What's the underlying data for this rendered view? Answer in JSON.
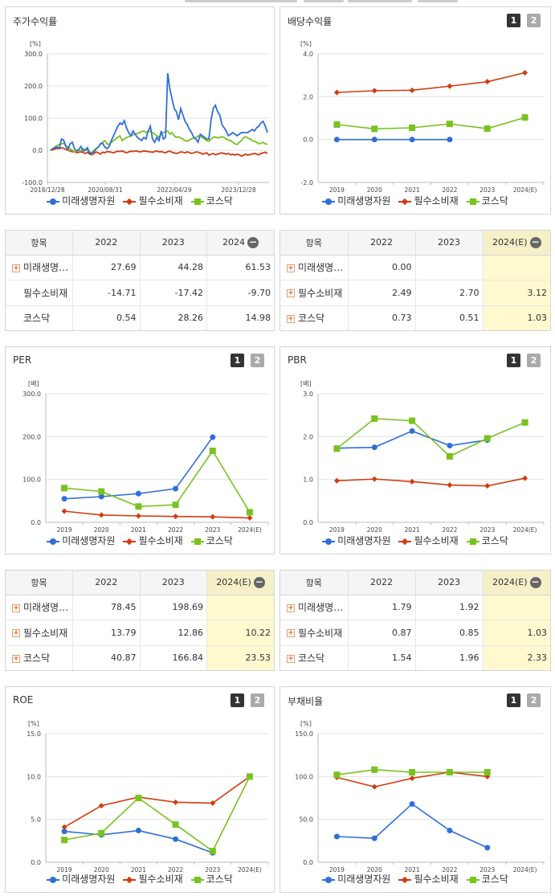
{
  "buttons": {
    "one": "1",
    "two": "2"
  },
  "colors": {
    "mirae": "#2f6fd6",
    "pilsu": "#d13c0f",
    "kosdaq": "#79c21f"
  },
  "panels": {
    "stock": {
      "title": "주가수익률",
      "unit": "[%]"
    },
    "dividend": {
      "title": "배당수익률",
      "unit": "[%]"
    },
    "per": {
      "title": "PER",
      "unit": "[배]"
    },
    "pbr": {
      "title": "PBR",
      "unit": "[배]"
    },
    "roe": {
      "title": "ROE",
      "unit": "[%]"
    },
    "debt": {
      "title": "부채비율",
      "unit": "[%]"
    }
  },
  "legend": [
    "미래생명자원",
    "필수소비재",
    "코스닥"
  ],
  "tables": {
    "stock": {
      "headers": [
        "항목",
        "2022",
        "2023",
        "2024"
      ],
      "rows": [
        {
          "name": "미래생명…",
          "plus": true,
          "values": [
            "27.69",
            "44.28",
            "61.53"
          ]
        },
        {
          "name": "필수소비재",
          "plus": false,
          "values": [
            "-14.71",
            "-17.42",
            "-9.70"
          ]
        },
        {
          "name": "코스닥",
          "plus": false,
          "values": [
            "0.54",
            "28.26",
            "14.98"
          ]
        }
      ]
    },
    "dividend": {
      "headers": [
        "항목",
        "2022",
        "2023",
        "2024(E)"
      ],
      "rows": [
        {
          "name": "미래생명…",
          "plus": true,
          "values": [
            "0.00",
            "",
            ""
          ]
        },
        {
          "name": "필수소비재",
          "plus": true,
          "values": [
            "2.49",
            "2.70",
            "3.12"
          ]
        },
        {
          "name": "코스닥",
          "plus": true,
          "values": [
            "0.73",
            "0.51",
            "1.03"
          ]
        }
      ]
    },
    "per": {
      "headers": [
        "항목",
        "2022",
        "2023",
        "2024(E)"
      ],
      "rows": [
        {
          "name": "미래생명…",
          "plus": true,
          "values": [
            "78.45",
            "198.69",
            ""
          ]
        },
        {
          "name": "필수소비재",
          "plus": true,
          "values": [
            "13.79",
            "12.86",
            "10.22"
          ]
        },
        {
          "name": "코스닥",
          "plus": true,
          "values": [
            "40.87",
            "166.84",
            "23.53"
          ]
        }
      ]
    },
    "pbr": {
      "headers": [
        "항목",
        "2022",
        "2023",
        "2024(E)"
      ],
      "rows": [
        {
          "name": "미래생명…",
          "plus": true,
          "values": [
            "1.79",
            "1.92",
            ""
          ]
        },
        {
          "name": "필수소비재",
          "plus": true,
          "values": [
            "0.87",
            "0.85",
            "1.03"
          ]
        },
        {
          "name": "코스닥",
          "plus": true,
          "values": [
            "1.54",
            "1.96",
            "2.33"
          ]
        }
      ]
    }
  },
  "chart_data": [
    {
      "id": "stock",
      "type": "line",
      "title": "주가수익률",
      "ylabel": "[%]",
      "ylim": [
        -100,
        300
      ],
      "yticks": [
        "300.0",
        "200.0",
        "100.0",
        "0.0",
        "-100.0"
      ],
      "xticks": [
        "2018/12/28",
        "2020/08/31",
        "2022/04/29",
        "2023/12/28"
      ],
      "series": [
        {
          "name": "미래생명자원",
          "values": [
            0,
            5,
            8,
            10,
            6,
            35,
            32,
            12,
            3,
            20,
            25,
            5,
            -2,
            3,
            12,
            -3,
            0,
            8,
            -10,
            -8,
            -5,
            5,
            10,
            20,
            22,
            10,
            5,
            12,
            30,
            45,
            60,
            75,
            85,
            80,
            92,
            70,
            55,
            45,
            60,
            50,
            40,
            35,
            30,
            40,
            35,
            60,
            75,
            35,
            25,
            40,
            30,
            60,
            35,
            40,
            240,
            190,
            160,
            130,
            120,
            95,
            130,
            110,
            90,
            80,
            65,
            55,
            40,
            35,
            25,
            50,
            45,
            40,
            35,
            35,
            95,
            130,
            140,
            120,
            110,
            80,
            70,
            60,
            45,
            50,
            55,
            50,
            45,
            50,
            55,
            55,
            55,
            55,
            60,
            65,
            60,
            70,
            75,
            85,
            90,
            75,
            55
          ]
        },
        {
          "name": "필수소비재",
          "values": [
            0,
            2,
            4,
            6,
            5,
            8,
            6,
            3,
            0,
            -2,
            -5,
            -4,
            -8,
            -6,
            -5,
            -7,
            -10,
            -6,
            -12,
            -14,
            -10,
            -5,
            -8,
            -12,
            -6,
            -8,
            -4,
            -5,
            -6,
            -8,
            -5,
            -3,
            -4,
            -2,
            -5,
            -8,
            -5,
            -3,
            -4,
            -2,
            -3,
            -5,
            -4,
            -2,
            -3,
            -4,
            -5,
            -6,
            -4,
            -2,
            -5,
            -4,
            -6,
            -8,
            -4,
            -3,
            -6,
            -8,
            -10,
            -8,
            -5,
            -6,
            -8,
            -5,
            -7,
            -10,
            -8,
            -5,
            -6,
            -8,
            -12,
            -10,
            -8,
            -15,
            -12,
            -10,
            -14,
            -12,
            -10,
            -8,
            -10,
            -12,
            -10,
            -14,
            -12,
            -15,
            -12,
            -14,
            -18,
            -15,
            -12,
            -15,
            -13,
            -12,
            -10,
            -12,
            -14,
            -10,
            -8,
            -6,
            -10
          ]
        },
        {
          "name": "코스닥",
          "values": [
            0,
            5,
            10,
            15,
            18,
            20,
            22,
            15,
            10,
            5,
            0,
            -5,
            -3,
            0,
            -2,
            5,
            3,
            0,
            -5,
            -8,
            0,
            5,
            10,
            20,
            25,
            30,
            20,
            18,
            25,
            30,
            35,
            40,
            45,
            30,
            35,
            40,
            42,
            45,
            48,
            50,
            52,
            55,
            58,
            60,
            55,
            60,
            58,
            55,
            50,
            45,
            40,
            52,
            55,
            58,
            60,
            50,
            55,
            45,
            40,
            42,
            38,
            35,
            30,
            28,
            32,
            35,
            38,
            40,
            45,
            42,
            40,
            35,
            30,
            28,
            35,
            40,
            42,
            38,
            40,
            42,
            40,
            35,
            32,
            30,
            25,
            20,
            18,
            25,
            30,
            40,
            42,
            38,
            35,
            30,
            28,
            25,
            20,
            22,
            25,
            20,
            18
          ]
        }
      ]
    },
    {
      "id": "dividend",
      "type": "line",
      "title": "배당수익률",
      "ylabel": "[%]",
      "ylim": [
        -2,
        4
      ],
      "yticks": [
        "4.0",
        "2.0",
        "0.0",
        "-2.0"
      ],
      "categories": [
        "2019",
        "2020",
        "2021",
        "2022",
        "2023",
        "2024(E)"
      ],
      "series": [
        {
          "name": "미래생명자원",
          "values": [
            0.0,
            0.0,
            0.0,
            0.0,
            null,
            null
          ]
        },
        {
          "name": "필수소비재",
          "values": [
            2.2,
            2.28,
            2.3,
            2.49,
            2.7,
            3.12
          ]
        },
        {
          "name": "코스닥",
          "values": [
            0.7,
            0.5,
            0.55,
            0.73,
            0.51,
            1.03
          ]
        }
      ]
    },
    {
      "id": "per",
      "type": "line",
      "title": "PER",
      "ylabel": "[배]",
      "ylim": [
        0,
        300
      ],
      "yticks": [
        "300.0",
        "200.0",
        "100.0",
        "0.0"
      ],
      "categories": [
        "2019",
        "2020",
        "2021",
        "2022",
        "2023",
        "2024(E)"
      ],
      "series": [
        {
          "name": "미래생명자원",
          "values": [
            55,
            60,
            67,
            78.45,
            198.69,
            null
          ]
        },
        {
          "name": "필수소비재",
          "values": [
            26,
            17,
            15,
            13.79,
            12.86,
            10.22
          ]
        },
        {
          "name": "코스닥",
          "values": [
            80,
            72,
            37,
            40.87,
            166.84,
            23.53
          ]
        }
      ]
    },
    {
      "id": "pbr",
      "type": "line",
      "title": "PBR",
      "ylabel": "[배]",
      "ylim": [
        0,
        3
      ],
      "yticks": [
        "3.0",
        "2.0",
        "1.0",
        "0.0"
      ],
      "categories": [
        "2019",
        "2020",
        "2021",
        "2022",
        "2023",
        "2024(E)"
      ],
      "series": [
        {
          "name": "미래생명자원",
          "values": [
            1.73,
            1.75,
            2.13,
            1.79,
            1.92,
            null
          ]
        },
        {
          "name": "필수소비재",
          "values": [
            0.97,
            1.01,
            0.95,
            0.87,
            0.85,
            1.03
          ]
        },
        {
          "name": "코스닥",
          "values": [
            1.72,
            2.42,
            2.37,
            1.54,
            1.96,
            2.33
          ]
        }
      ]
    },
    {
      "id": "roe",
      "type": "line",
      "title": "ROE",
      "ylabel": "[%]",
      "ylim": [
        0,
        15
      ],
      "yticks": [
        "15.0",
        "10.0",
        "5.0",
        "0.0"
      ],
      "categories": [
        "2019",
        "2020",
        "2021",
        "2022",
        "2023",
        "2024(E)"
      ],
      "series": [
        {
          "name": "미래생명자원",
          "values": [
            3.6,
            3.2,
            3.7,
            2.7,
            1.1,
            null
          ]
        },
        {
          "name": "필수소비재",
          "values": [
            4.1,
            6.6,
            7.6,
            7.0,
            6.9,
            10.0
          ]
        },
        {
          "name": "코스닥",
          "values": [
            2.6,
            3.4,
            7.5,
            4.4,
            1.3,
            10.0
          ]
        }
      ]
    },
    {
      "id": "debt",
      "type": "line",
      "title": "부채비율",
      "ylabel": "[%]",
      "ylim": [
        0,
        150
      ],
      "yticks": [
        "150.0",
        "100.0",
        "50.0",
        "0.0"
      ],
      "categories": [
        "2019",
        "2020",
        "2021",
        "2022",
        "2023",
        "2024(E)"
      ],
      "series": [
        {
          "name": "미래생명자원",
          "values": [
            30,
            28,
            68,
            37,
            17,
            null
          ]
        },
        {
          "name": "필수소비재",
          "values": [
            99,
            88,
            98,
            105,
            100,
            null
          ]
        },
        {
          "name": "코스닥",
          "values": [
            102,
            108,
            105,
            105,
            105,
            null
          ]
        }
      ]
    }
  ]
}
